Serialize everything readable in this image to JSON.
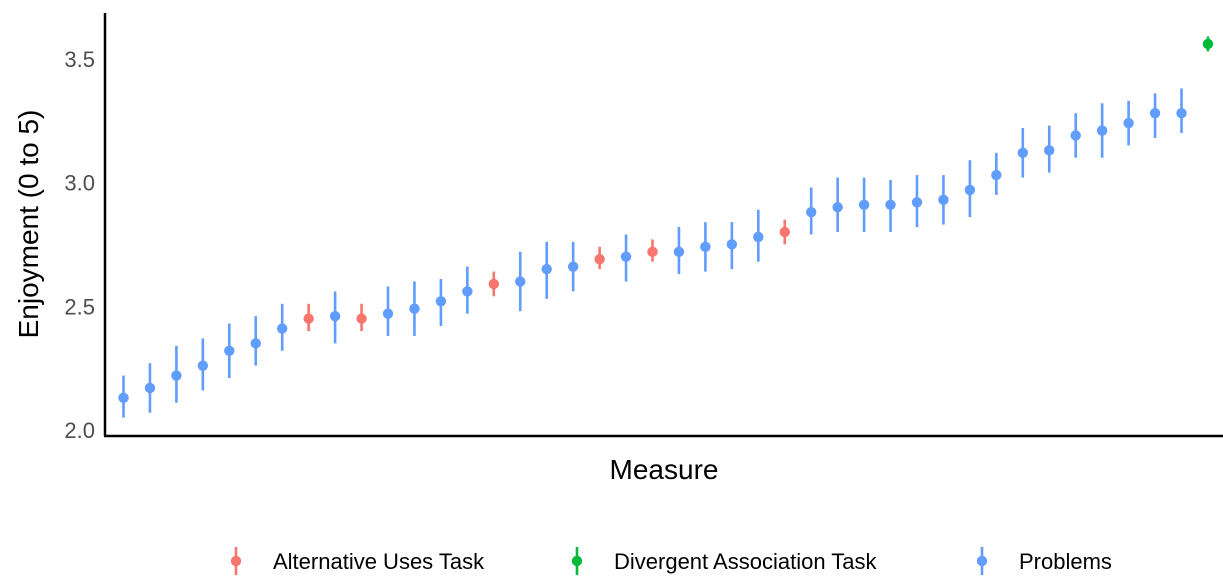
{
  "chart_data": {
    "type": "scatter",
    "xlabel": "Measure",
    "ylabel": "Enjoyment (0 to 5)",
    "ylim": [
      2.0,
      3.6
    ],
    "yticks": [
      {
        "value": 2.0,
        "label": "2.0"
      },
      {
        "value": 2.5,
        "label": "2.5"
      },
      {
        "value": 3.0,
        "label": "3.0"
      },
      {
        "value": 3.5,
        "label": "3.5"
      }
    ],
    "grid": false,
    "legend_position": "bottom",
    "legend": [
      {
        "label": "Alternative Uses Task",
        "color": "#F8766D"
      },
      {
        "label": "Divergent Association Task",
        "color": "#00BA38"
      },
      {
        "label": "Problems",
        "color": "#619CFF"
      }
    ],
    "points": [
      {
        "rank": 1,
        "group": "Problems",
        "y": 2.13,
        "lo": 2.05,
        "hi": 2.22
      },
      {
        "rank": 2,
        "group": "Problems",
        "y": 2.17,
        "lo": 2.07,
        "hi": 2.27
      },
      {
        "rank": 3,
        "group": "Problems",
        "y": 2.22,
        "lo": 2.11,
        "hi": 2.34
      },
      {
        "rank": 4,
        "group": "Problems",
        "y": 2.26,
        "lo": 2.16,
        "hi": 2.37
      },
      {
        "rank": 5,
        "group": "Problems",
        "y": 2.32,
        "lo": 2.21,
        "hi": 2.43
      },
      {
        "rank": 6,
        "group": "Problems",
        "y": 2.35,
        "lo": 2.26,
        "hi": 2.46
      },
      {
        "rank": 7,
        "group": "Problems",
        "y": 2.41,
        "lo": 2.32,
        "hi": 2.51
      },
      {
        "rank": 8,
        "group": "Alternative Uses Task",
        "y": 2.45,
        "lo": 2.4,
        "hi": 2.51
      },
      {
        "rank": 9,
        "group": "Problems",
        "y": 2.46,
        "lo": 2.35,
        "hi": 2.56
      },
      {
        "rank": 10,
        "group": "Alternative Uses Task",
        "y": 2.45,
        "lo": 2.4,
        "hi": 2.51
      },
      {
        "rank": 11,
        "group": "Problems",
        "y": 2.47,
        "lo": 2.38,
        "hi": 2.58
      },
      {
        "rank": 12,
        "group": "Problems",
        "y": 2.49,
        "lo": 2.38,
        "hi": 2.6
      },
      {
        "rank": 13,
        "group": "Problems",
        "y": 2.52,
        "lo": 2.42,
        "hi": 2.61
      },
      {
        "rank": 14,
        "group": "Problems",
        "y": 2.56,
        "lo": 2.47,
        "hi": 2.66
      },
      {
        "rank": 15,
        "group": "Alternative Uses Task",
        "y": 2.59,
        "lo": 2.54,
        "hi": 2.64
      },
      {
        "rank": 16,
        "group": "Problems",
        "y": 2.6,
        "lo": 2.48,
        "hi": 2.72
      },
      {
        "rank": 17,
        "group": "Problems",
        "y": 2.65,
        "lo": 2.53,
        "hi": 2.76
      },
      {
        "rank": 18,
        "group": "Problems",
        "y": 2.66,
        "lo": 2.56,
        "hi": 2.76
      },
      {
        "rank": 19,
        "group": "Alternative Uses Task",
        "y": 2.69,
        "lo": 2.65,
        "hi": 2.74
      },
      {
        "rank": 20,
        "group": "Problems",
        "y": 2.7,
        "lo": 2.6,
        "hi": 2.79
      },
      {
        "rank": 21,
        "group": "Alternative Uses Task",
        "y": 2.72,
        "lo": 2.68,
        "hi": 2.77
      },
      {
        "rank": 22,
        "group": "Problems",
        "y": 2.72,
        "lo": 2.63,
        "hi": 2.82
      },
      {
        "rank": 23,
        "group": "Problems",
        "y": 2.74,
        "lo": 2.64,
        "hi": 2.84
      },
      {
        "rank": 24,
        "group": "Problems",
        "y": 2.75,
        "lo": 2.65,
        "hi": 2.84
      },
      {
        "rank": 25,
        "group": "Problems",
        "y": 2.78,
        "lo": 2.68,
        "hi": 2.89
      },
      {
        "rank": 26,
        "group": "Alternative Uses Task",
        "y": 2.8,
        "lo": 2.75,
        "hi": 2.85
      },
      {
        "rank": 27,
        "group": "Problems",
        "y": 2.88,
        "lo": 2.79,
        "hi": 2.98
      },
      {
        "rank": 28,
        "group": "Problems",
        "y": 2.9,
        "lo": 2.8,
        "hi": 3.02
      },
      {
        "rank": 29,
        "group": "Problems",
        "y": 2.91,
        "lo": 2.8,
        "hi": 3.02
      },
      {
        "rank": 30,
        "group": "Problems",
        "y": 2.91,
        "lo": 2.8,
        "hi": 3.01
      },
      {
        "rank": 31,
        "group": "Problems",
        "y": 2.92,
        "lo": 2.82,
        "hi": 3.03
      },
      {
        "rank": 32,
        "group": "Problems",
        "y": 2.93,
        "lo": 2.83,
        "hi": 3.03
      },
      {
        "rank": 33,
        "group": "Problems",
        "y": 2.97,
        "lo": 2.86,
        "hi": 3.09
      },
      {
        "rank": 34,
        "group": "Problems",
        "y": 3.03,
        "lo": 2.95,
        "hi": 3.12
      },
      {
        "rank": 35,
        "group": "Problems",
        "y": 3.12,
        "lo": 3.02,
        "hi": 3.22
      },
      {
        "rank": 36,
        "group": "Problems",
        "y": 3.13,
        "lo": 3.04,
        "hi": 3.23
      },
      {
        "rank": 37,
        "group": "Problems",
        "y": 3.19,
        "lo": 3.1,
        "hi": 3.28
      },
      {
        "rank": 38,
        "group": "Problems",
        "y": 3.21,
        "lo": 3.1,
        "hi": 3.32
      },
      {
        "rank": 39,
        "group": "Problems",
        "y": 3.24,
        "lo": 3.15,
        "hi": 3.33
      },
      {
        "rank": 40,
        "group": "Problems",
        "y": 3.28,
        "lo": 3.18,
        "hi": 3.36
      },
      {
        "rank": 41,
        "group": "Problems",
        "y": 3.28,
        "lo": 3.2,
        "hi": 3.38
      },
      {
        "rank": 42,
        "group": "Divergent Association Task",
        "y": 3.56,
        "lo": 3.53,
        "hi": 3.59
      }
    ]
  }
}
